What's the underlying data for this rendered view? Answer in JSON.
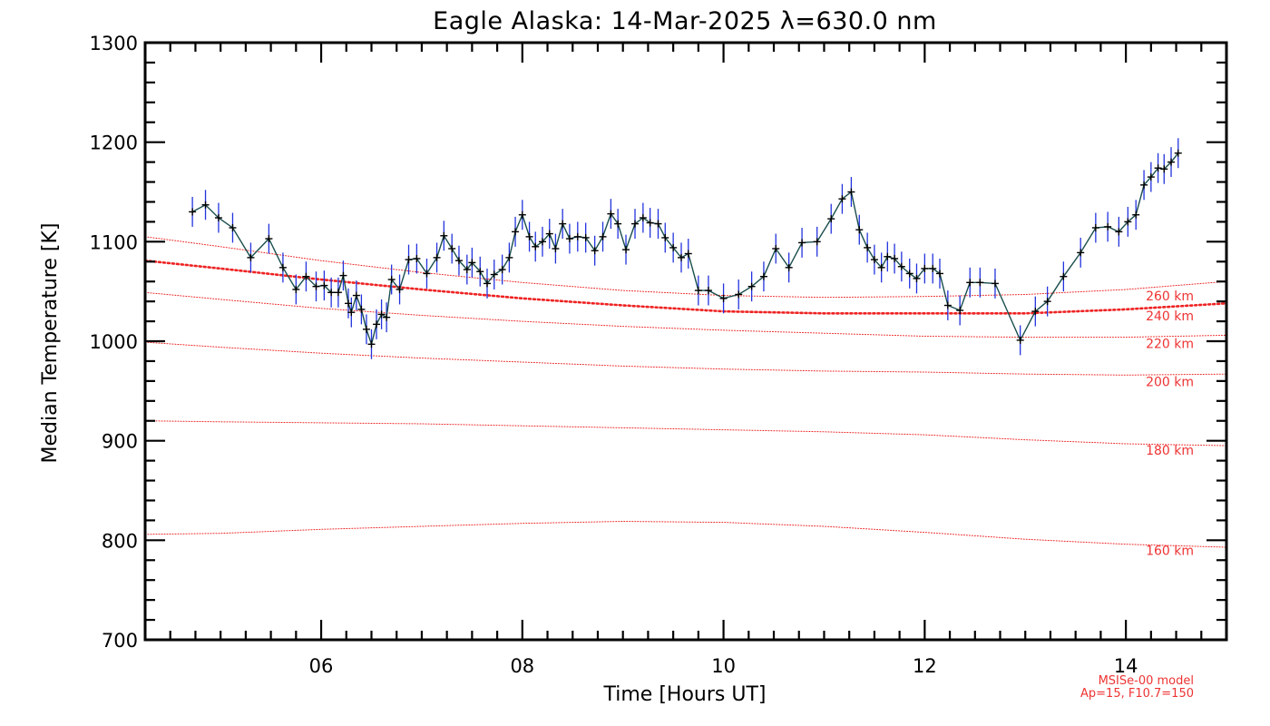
{
  "chart_data": {
    "type": "line",
    "title": "Eagle Alaska: 14-Mar-2025 λ=630.0 nm",
    "xlabel": "Time [Hours UT]",
    "ylabel": "Median Temperature [K]",
    "xlim": [
      4.25,
      15.0
    ],
    "ylim": [
      700,
      1300
    ],
    "x_ticks": [
      6,
      8,
      10,
      12,
      14
    ],
    "x_tick_labels": [
      "06",
      "08",
      "10",
      "12",
      "14"
    ],
    "y_ticks": [
      700,
      800,
      900,
      1000,
      1100,
      1200,
      1300
    ],
    "y_tick_labels": [
      "700",
      "800",
      "900",
      "1000",
      "1100",
      "1200",
      "1300"
    ],
    "colors": {
      "data_line": "#1a4d4d",
      "data_marker": "#000000",
      "error_bar": "#2233dd",
      "model": "#ee2222"
    },
    "series": [
      {
        "name": "Median Temperature",
        "x": [
          4.72,
          4.85,
          4.98,
          5.12,
          5.3,
          5.48,
          5.62,
          5.75,
          5.85,
          5.95,
          6.03,
          6.1,
          6.17,
          6.22,
          6.27,
          6.3,
          6.35,
          6.4,
          6.45,
          6.5,
          6.55,
          6.6,
          6.65,
          6.7,
          6.78,
          6.87,
          6.95,
          7.05,
          7.15,
          7.22,
          7.3,
          7.37,
          7.45,
          7.5,
          7.58,
          7.65,
          7.72,
          7.8,
          7.87,
          7.93,
          8.0,
          8.07,
          8.13,
          8.2,
          8.27,
          8.33,
          8.4,
          8.47,
          8.55,
          8.63,
          8.72,
          8.8,
          8.88,
          8.95,
          9.03,
          9.12,
          9.2,
          9.27,
          9.35,
          9.42,
          9.5,
          9.58,
          9.65,
          9.75,
          9.85,
          10.0,
          10.15,
          10.28,
          10.4,
          10.52,
          10.65,
          10.78,
          10.93,
          11.07,
          11.18,
          11.27,
          11.35,
          11.43,
          11.5,
          11.57,
          11.63,
          11.7,
          11.77,
          11.85,
          11.92,
          12.0,
          12.08,
          12.15,
          12.23,
          12.35,
          12.45,
          12.55,
          12.7,
          12.95,
          13.1,
          13.22,
          13.38,
          13.55,
          13.7,
          13.82,
          13.93,
          14.02,
          14.1,
          14.18,
          14.25,
          14.32,
          14.38,
          14.45,
          14.52
        ],
        "values": [
          1130,
          1137,
          1124,
          1114,
          1084,
          1103,
          1074,
          1052,
          1065,
          1055,
          1056,
          1049,
          1049,
          1066,
          1038,
          1029,
          1046,
          1032,
          1012,
          997,
          1017,
          1027,
          1024,
          1062,
          1052,
          1082,
          1083,
          1068,
          1084,
          1106,
          1093,
          1081,
          1072,
          1079,
          1070,
          1058,
          1067,
          1072,
          1084,
          1110,
          1127,
          1105,
          1095,
          1100,
          1108,
          1093,
          1118,
          1103,
          1105,
          1104,
          1091,
          1105,
          1128,
          1118,
          1092,
          1118,
          1124,
          1119,
          1118,
          1104,
          1094,
          1084,
          1088,
          1051,
          1051,
          1043,
          1047,
          1055,
          1065,
          1093,
          1074,
          1099,
          1100,
          1123,
          1143,
          1150,
          1112,
          1094,
          1082,
          1074,
          1085,
          1083,
          1075,
          1068,
          1063,
          1073,
          1073,
          1068,
          1036,
          1031,
          1059,
          1059,
          1058,
          1001,
          1030,
          1040,
          1065,
          1089,
          1114,
          1115,
          1110,
          1120,
          1127,
          1157,
          1165,
          1174,
          1173,
          1180,
          1189
        ],
        "error": 15
      }
    ],
    "model_curves": [
      {
        "altitude_km": 160,
        "label": "160 km",
        "x": [
          4.25,
          5,
          6,
          7,
          8,
          9,
          10,
          11,
          12,
          13,
          14,
          15
        ],
        "values": [
          806,
          807,
          811,
          814,
          817,
          819,
          818,
          814,
          808,
          801,
          796,
          793
        ]
      },
      {
        "altitude_km": 180,
        "label": "180 km",
        "x": [
          4.25,
          5,
          6,
          7,
          8,
          9,
          10,
          11,
          12,
          13,
          14,
          15
        ],
        "values": [
          920,
          919,
          918,
          917,
          915,
          913,
          911,
          909,
          906,
          901,
          897,
          895
        ]
      },
      {
        "altitude_km": 200,
        "label": "200 km",
        "x": [
          4.25,
          5,
          6,
          7,
          8,
          9,
          10,
          11,
          12,
          13,
          14,
          15
        ],
        "values": [
          999,
          994,
          988,
          983,
          979,
          975,
          972,
          970,
          969,
          967,
          966,
          967
        ]
      },
      {
        "altitude_km": 220,
        "label": "220 km",
        "x": [
          4.25,
          5,
          6,
          7,
          8,
          9,
          10,
          11,
          12,
          13,
          14,
          15
        ],
        "values": [
          1049,
          1042,
          1033,
          1026,
          1020,
          1015,
          1011,
          1008,
          1005,
          1004,
          1004,
          1006
        ]
      },
      {
        "altitude_km": 240,
        "label": "240 km",
        "x": [
          4.25,
          5,
          6,
          7,
          8,
          9,
          10,
          11,
          12,
          13,
          14,
          15
        ],
        "values": [
          1081,
          1073,
          1062,
          1052,
          1043,
          1036,
          1030,
          1028,
          1028,
          1028,
          1032,
          1038
        ],
        "emphasized": true
      },
      {
        "altitude_km": 260,
        "label": "260 km",
        "x": [
          4.25,
          5,
          6,
          7,
          8,
          9,
          10,
          11,
          12,
          13,
          14,
          15
        ],
        "values": [
          1105,
          1095,
          1081,
          1069,
          1059,
          1051,
          1046,
          1044,
          1045,
          1047,
          1052,
          1060
        ]
      }
    ],
    "model_note": [
      "MSISe-00 model",
      "Ap=15, F10.7=150"
    ]
  }
}
